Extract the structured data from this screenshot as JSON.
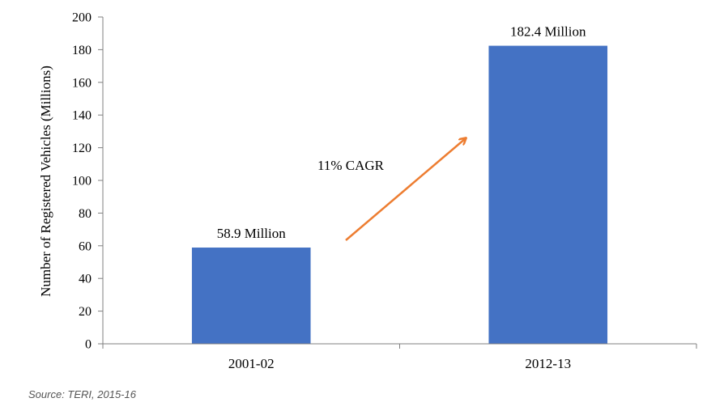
{
  "chart_data": {
    "type": "bar",
    "categories": [
      "2001-02",
      "2012-13"
    ],
    "values": [
      58.9,
      182.4
    ],
    "data_labels": [
      "58.9 Million",
      "182.4 Million"
    ],
    "title": "",
    "xlabel": "",
    "ylabel": "Number of Registered Vehicles (Millions)",
    "ylim": [
      0,
      200
    ],
    "yticks": [
      0,
      20,
      40,
      60,
      80,
      100,
      120,
      140,
      160,
      180,
      200
    ],
    "grid": false,
    "legend": "none",
    "annotation": {
      "text": "11% CAGR",
      "arrow": "from 2001-02 bar toward 2012-13 bar"
    },
    "colors": {
      "bar": "#4472C4",
      "arrow": "#ED7D31",
      "axis": "#7F7F7F"
    }
  },
  "source_note": "Source: TERI, 2015-16"
}
